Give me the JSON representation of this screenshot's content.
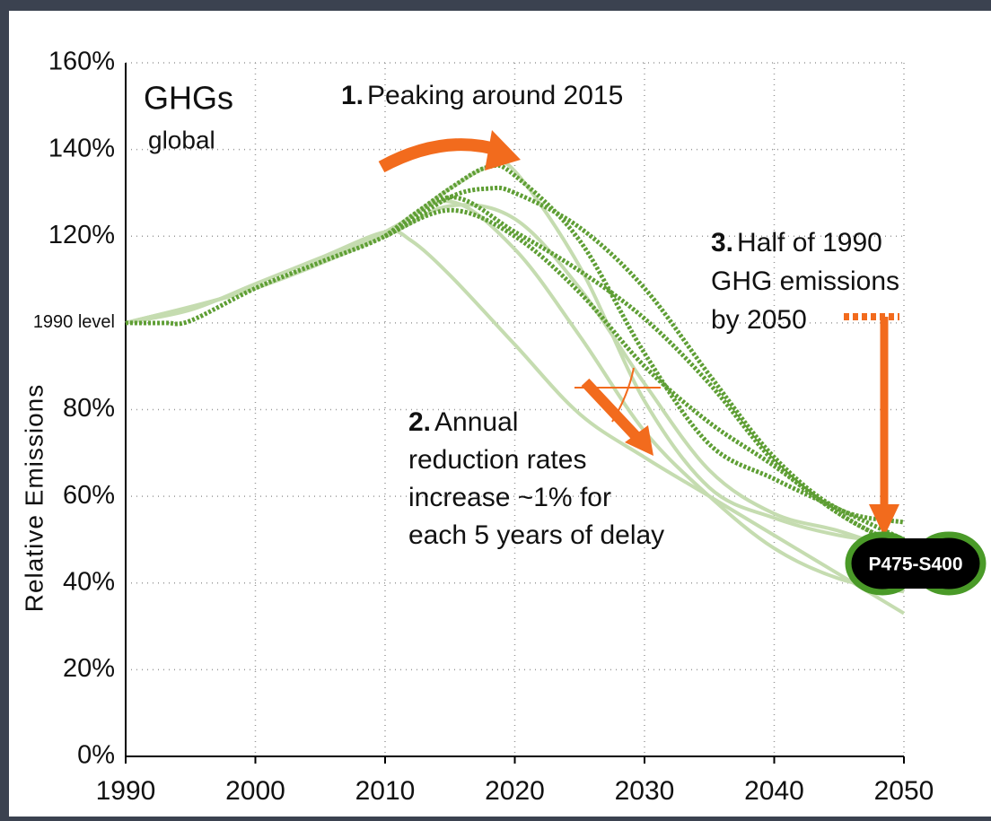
{
  "chart_data": {
    "type": "line",
    "ylabel": "Relative Emissions",
    "xlim": [
      1990,
      2050
    ],
    "ylim": [
      0,
      160
    ],
    "xticks": [
      1990,
      2000,
      2010,
      2020,
      2030,
      2040,
      2050
    ],
    "yticks": [
      {
        "value": 0,
        "label": "0%"
      },
      {
        "value": 20,
        "label": "20%"
      },
      {
        "value": 40,
        "label": "40%"
      },
      {
        "value": 60,
        "label": "60%"
      },
      {
        "value": 80,
        "label": "80%"
      },
      {
        "value": 100,
        "label": "1990 level"
      },
      {
        "value": 120,
        "label": "120%"
      },
      {
        "value": 140,
        "label": "140%"
      },
      {
        "value": 160,
        "label": "160%"
      }
    ],
    "grid": true,
    "series": [
      {
        "color": "#c5dcb0",
        "style": "solid",
        "x": [
          1990,
          1995,
          2000,
          2005,
          2010,
          2012,
          2015,
          2020,
          2025,
          2030,
          2035,
          2040,
          2045,
          2050
        ],
        "values": [
          100,
          103,
          109,
          115,
          121,
          119,
          111,
          95,
          79,
          69,
          60,
          51,
          42,
          33
        ]
      },
      {
        "color": "#c5dcb0",
        "style": "solid",
        "x": [
          1990,
          2000,
          2010,
          2015,
          2020,
          2025,
          2030,
          2035,
          2040,
          2045,
          2050
        ],
        "values": [
          100,
          108,
          121,
          128,
          117,
          97,
          75,
          60,
          48,
          41,
          38
        ]
      },
      {
        "color": "#c5dcb0",
        "style": "solid",
        "x": [
          1990,
          2000,
          2010,
          2015,
          2018,
          2020,
          2025,
          2030,
          2035,
          2040,
          2045,
          2050
        ],
        "values": [
          100,
          108,
          121,
          131,
          136,
          135,
          113,
          82,
          62,
          55,
          51,
          49
        ]
      },
      {
        "color": "#c5dcb0",
        "style": "solid",
        "x": [
          1990,
          2000,
          2010,
          2015,
          2020,
          2025,
          2030,
          2035,
          2040,
          2045,
          2050
        ],
        "values": [
          100,
          108,
          120,
          127,
          124,
          108,
          86,
          66,
          56,
          52,
          47
        ]
      },
      {
        "color": "#5e9e34",
        "style": "dotted",
        "x": [
          1990,
          1993,
          1995,
          2000,
          2005,
          2010,
          2015,
          2018,
          2020,
          2025,
          2030,
          2035,
          2040,
          2045,
          2050
        ],
        "values": [
          100,
          100,
          100.5,
          108,
          114,
          120,
          129,
          131,
          130,
          122,
          108,
          88,
          69,
          57,
          54
        ]
      },
      {
        "color": "#5e9e34",
        "style": "dotted",
        "x": [
          2010,
          2015,
          2020,
          2025,
          2030,
          2035,
          2040,
          2045,
          2050
        ],
        "values": [
          120,
          126,
          120,
          107,
          90,
          77,
          67,
          56,
          48
        ]
      },
      {
        "color": "#5e9e34",
        "style": "dotted",
        "x": [
          2010,
          2015,
          2020,
          2025,
          2030,
          2035,
          2040,
          2045,
          2050
        ],
        "values": [
          120,
          129,
          121,
          112,
          101,
          86,
          68,
          56,
          48
        ]
      },
      {
        "color": "#5e9e34",
        "style": "dotted",
        "x": [
          2010,
          2015,
          2018,
          2020,
          2025,
          2030,
          2035,
          2040,
          2045,
          2050
        ],
        "values": [
          120,
          131,
          136,
          134,
          119,
          93,
          72,
          64,
          57,
          50
        ]
      }
    ],
    "annotations": {
      "title": {
        "main": "GHGs",
        "sub": "global"
      },
      "peak": {
        "number": "1.",
        "text": "Peaking around 2015"
      },
      "rates": {
        "number": "2.",
        "lines": [
          "Annual",
          "reduction rates",
          "increase ~1% for",
          "each 5 years of delay"
        ]
      },
      "half": {
        "number": "3.",
        "lines": [
          "Half of 1990",
          "GHG emissions",
          "by 2050"
        ]
      },
      "scenario": "P475-S400"
    }
  }
}
